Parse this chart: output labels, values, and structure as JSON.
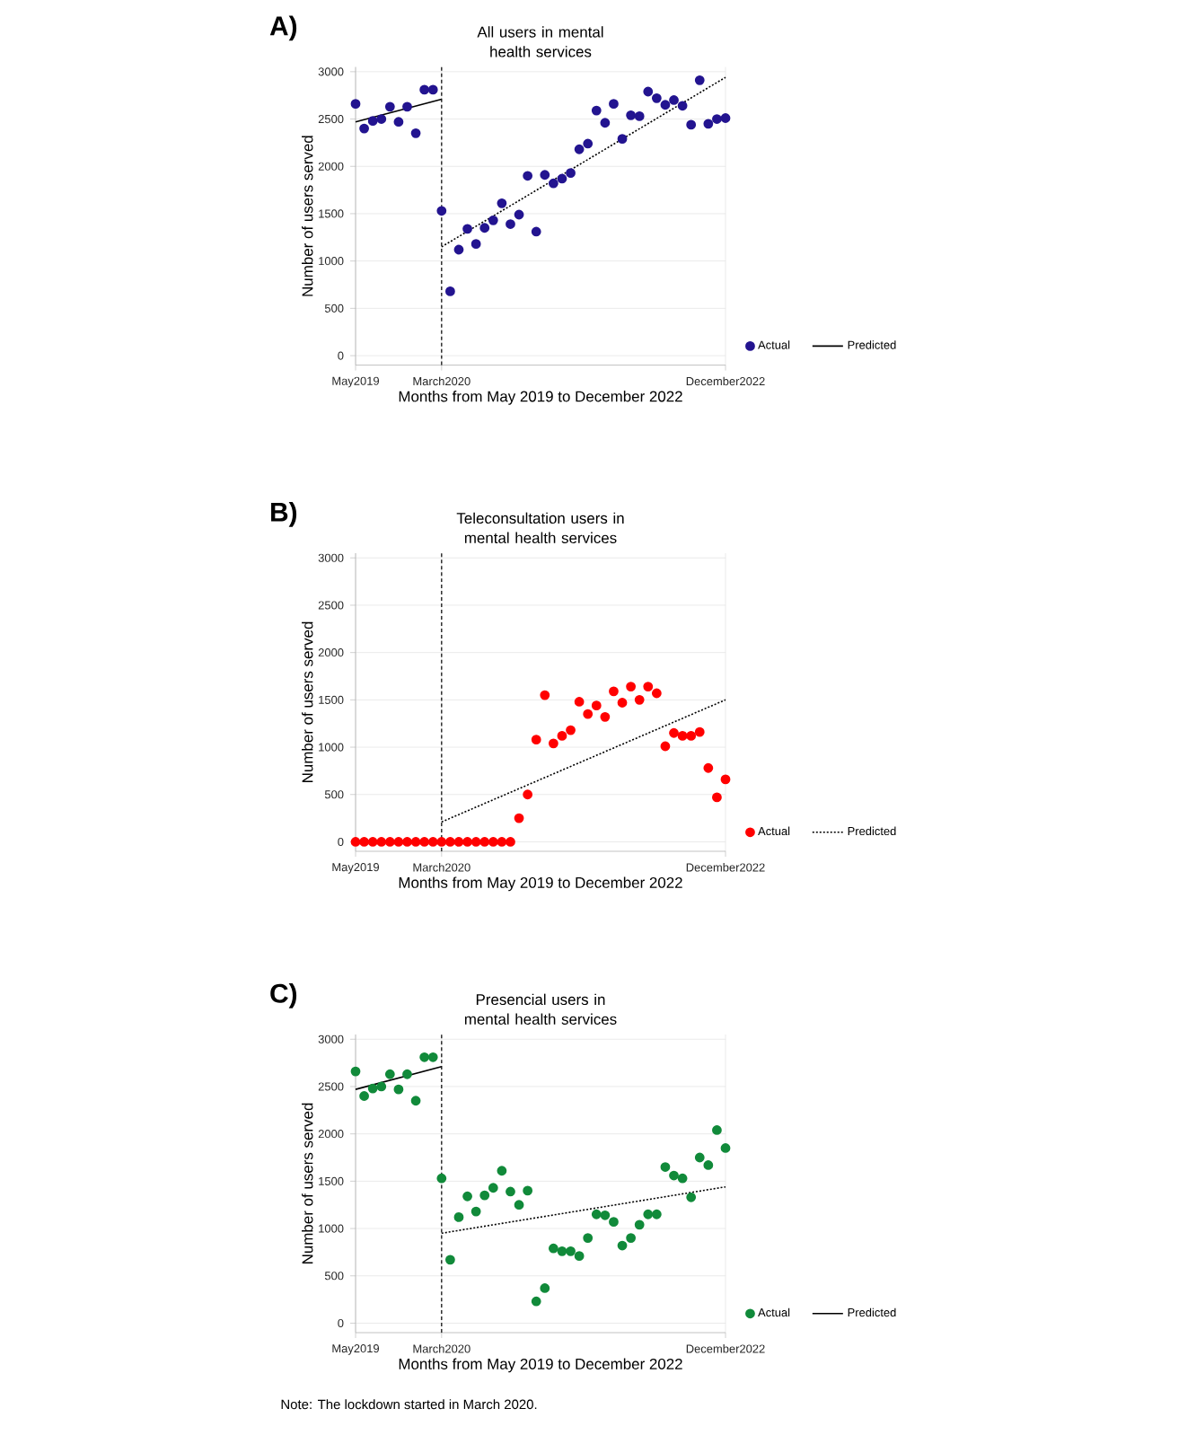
{
  "chart_data": [
    {
      "type": "scatter",
      "title": "All users in mental health services",
      "xlabel": "Months from May 2019 to December 2022",
      "ylabel": "Number of users served",
      "annotations": [
        "A)"
      ],
      "x": [
        "2019-05",
        "2019-06",
        "2019-07",
        "2019-08",
        "2019-09",
        "2019-10",
        "2019-11",
        "2019-12",
        "2020-01",
        "2020-02",
        "2020-03",
        "2020-04",
        "2020-05",
        "2020-06",
        "2020-07",
        "2020-08",
        "2020-09",
        "2020-10",
        "2020-11",
        "2020-12",
        "2021-01",
        "2021-02",
        "2021-03",
        "2021-04",
        "2021-05",
        "2021-06",
        "2021-07",
        "2021-08",
        "2021-09",
        "2021-10",
        "2021-11",
        "2021-12",
        "2022-01",
        "2022-02",
        "2022-03",
        "2022-04",
        "2022-05",
        "2022-06",
        "2022-07",
        "2022-08",
        "2022-09",
        "2022-10",
        "2022-11",
        "2022-12"
      ],
      "series": [
        {
          "name": "Actual",
          "color": "#231490",
          "values": [
            2660,
            2400,
            2480,
            2500,
            2630,
            2470,
            2630,
            2350,
            2810,
            2810,
            1530,
            680,
            1120,
            1340,
            1180,
            1350,
            1430,
            1610,
            1390,
            1490,
            1900,
            1310,
            1910,
            1820,
            1870,
            1930,
            2180,
            2240,
            2590,
            2460,
            2660,
            2290,
            2540,
            2530,
            2790,
            2720,
            2650,
            2700,
            2640,
            2440,
            2910,
            2450,
            2500,
            2510
          ]
        },
        {
          "name": "Predicted",
          "type": "line",
          "marker": "none",
          "line_style": "solid",
          "color": "#000000",
          "x": [
            "2019-05",
            "2020-03"
          ],
          "values": [
            2470,
            2710
          ]
        },
        {
          "type": "line",
          "marker": "none",
          "line_style": "dotted",
          "color": "#000000",
          "x": [
            "2020-03",
            "2022-12"
          ],
          "values": [
            1150,
            2940
          ]
        }
      ],
      "xlim": [
        "2019-05",
        "2022-12"
      ],
      "ylim": [
        -100,
        3050
      ],
      "xticks": [
        {
          "value": "2019-05",
          "label": "May2019"
        },
        {
          "value": "2020-03",
          "label": "March2020"
        },
        {
          "value": "2022-12",
          "label": "December2022"
        }
      ],
      "yticks": [
        0,
        500,
        1000,
        1500,
        2000,
        2500,
        3000
      ],
      "ref_lines": [
        {
          "axis": "x",
          "value": "2020-03",
          "color": "#000000",
          "line_style": "dashed"
        }
      ],
      "grid": true,
      "legend": "bottom right",
      "marker": "circle"
    },
    {
      "type": "scatter",
      "title": "Teleconsultation users in mental health services",
      "xlabel": "Months from May 2019 to December 2022",
      "ylabel": "Number of users served",
      "annotations": [
        "B)"
      ],
      "x": [
        "2019-05",
        "2019-06",
        "2019-07",
        "2019-08",
        "2019-09",
        "2019-10",
        "2019-11",
        "2019-12",
        "2020-01",
        "2020-02",
        "2020-03",
        "2020-04",
        "2020-05",
        "2020-06",
        "2020-07",
        "2020-08",
        "2020-09",
        "2020-10",
        "2020-11",
        "2020-12",
        "2021-01",
        "2021-02",
        "2021-03",
        "2021-04",
        "2021-05",
        "2021-06",
        "2021-07",
        "2021-08",
        "2021-09",
        "2021-10",
        "2021-11",
        "2021-12",
        "2022-01",
        "2022-02",
        "2022-03",
        "2022-04",
        "2022-05",
        "2022-06",
        "2022-07",
        "2022-08",
        "2022-09",
        "2022-10",
        "2022-11",
        "2022-12"
      ],
      "series": [
        {
          "name": "Actual",
          "color": "#ff0000",
          "values": [
            0,
            0,
            0,
            0,
            0,
            0,
            0,
            0,
            0,
            0,
            0,
            0,
            0,
            0,
            0,
            0,
            0,
            0,
            0,
            250,
            500,
            1080,
            1550,
            1040,
            1120,
            1180,
            1480,
            1350,
            1440,
            1320,
            1590,
            1470,
            1640,
            1500,
            1640,
            1570,
            1010,
            1150,
            1120,
            1120,
            1160,
            780,
            470,
            660
          ]
        },
        {
          "name": "Predicted",
          "type": "line",
          "marker": "none",
          "line_style": "dotted",
          "color": "#000000",
          "x": [
            "2020-03",
            "2022-12"
          ],
          "values": [
            210,
            1500
          ]
        }
      ],
      "xlim": [
        "2019-05",
        "2022-12"
      ],
      "ylim": [
        -100,
        3050
      ],
      "xticks": [
        {
          "value": "2019-05",
          "label": "May2019"
        },
        {
          "value": "2020-03",
          "label": "March2020"
        },
        {
          "value": "2022-12",
          "label": "December2022"
        }
      ],
      "yticks": [
        0,
        500,
        1000,
        1500,
        2000,
        2500,
        3000
      ],
      "ref_lines": [
        {
          "axis": "x",
          "value": "2020-03",
          "color": "#000000",
          "line_style": "dashed"
        }
      ],
      "grid": true,
      "legend": "bottom right",
      "marker": "circle"
    },
    {
      "type": "scatter",
      "title": "Presencial users in mental health services",
      "xlabel": "Months from May 2019 to December 2022",
      "ylabel": "Number of users served",
      "annotations": [
        "C)",
        "Note: The lockdown started in March 2020."
      ],
      "x": [
        "2019-05",
        "2019-06",
        "2019-07",
        "2019-08",
        "2019-09",
        "2019-10",
        "2019-11",
        "2019-12",
        "2020-01",
        "2020-02",
        "2020-03",
        "2020-04",
        "2020-05",
        "2020-06",
        "2020-07",
        "2020-08",
        "2020-09",
        "2020-10",
        "2020-11",
        "2020-12",
        "2021-01",
        "2021-02",
        "2021-03",
        "2021-04",
        "2021-05",
        "2021-06",
        "2021-07",
        "2021-08",
        "2021-09",
        "2021-10",
        "2021-11",
        "2021-12",
        "2022-01",
        "2022-02",
        "2022-03",
        "2022-04",
        "2022-05",
        "2022-06",
        "2022-07",
        "2022-08",
        "2022-09",
        "2022-10",
        "2022-11",
        "2022-12"
      ],
      "series": [
        {
          "name": "Actual",
          "color": "#118a3a",
          "values": [
            2660,
            2400,
            2480,
            2500,
            2630,
            2470,
            2630,
            2350,
            2810,
            2810,
            1530,
            670,
            1120,
            1340,
            1180,
            1350,
            1430,
            1610,
            1390,
            1250,
            1400,
            230,
            370,
            790,
            760,
            760,
            710,
            900,
            1150,
            1140,
            1070,
            820,
            900,
            1040,
            1150,
            1150,
            1650,
            1560,
            1530,
            1330,
            1750,
            1670,
            2040,
            1850
          ]
        },
        {
          "name": "Predicted",
          "type": "line",
          "marker": "none",
          "line_style": "solid",
          "color": "#000000",
          "x": [
            "2019-05",
            "2020-03"
          ],
          "values": [
            2470,
            2710
          ]
        },
        {
          "type": "line",
          "marker": "none",
          "line_style": "dotted",
          "color": "#000000",
          "x": [
            "2020-03",
            "2022-12"
          ],
          "values": [
            950,
            1440
          ]
        }
      ],
      "xlim": [
        "2019-05",
        "2022-12"
      ],
      "ylim": [
        -100,
        3050
      ],
      "xticks": [
        {
          "value": "2019-05",
          "label": "May2019"
        },
        {
          "value": "2020-03",
          "label": "March2020"
        },
        {
          "value": "2022-12",
          "label": "December2022"
        }
      ],
      "yticks": [
        0,
        500,
        1000,
        1500,
        2000,
        2500,
        3000
      ],
      "ref_lines": [
        {
          "axis": "x",
          "value": "2020-03",
          "color": "#000000",
          "line_style": "dashed"
        }
      ],
      "grid": true,
      "legend": "bottom right",
      "marker": "circle"
    }
  ]
}
